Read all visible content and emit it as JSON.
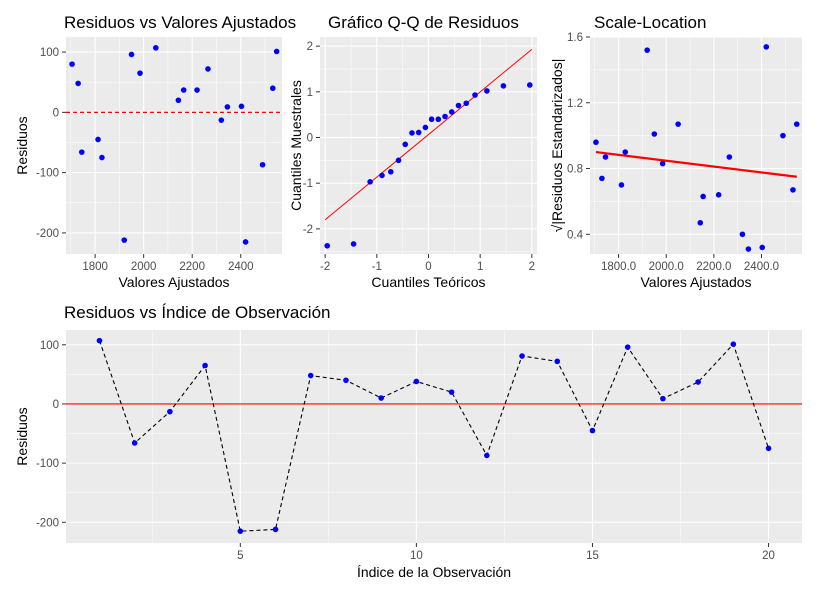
{
  "chart_data": [
    {
      "id": "resid-fitted",
      "type": "scatter",
      "title": "Residuos vs Valores Ajustados",
      "xlabel": "Valores Ajustados",
      "ylabel": "Residuos",
      "xlim": [
        1680,
        2570
      ],
      "ylim": [
        -235,
        125
      ],
      "xticks": [
        1800,
        2000,
        2200,
        2400
      ],
      "yticks": [
        -200,
        -100,
        0,
        100
      ],
      "grid": true,
      "point_color": "#0000ff",
      "reference_line": {
        "y": 0,
        "style": "dashed",
        "color": "#ff0000"
      },
      "points": [
        {
          "x": 1705,
          "y": 80
        },
        {
          "x": 1730,
          "y": 48
        },
        {
          "x": 1745,
          "y": -66
        },
        {
          "x": 1812,
          "y": -45
        },
        {
          "x": 1828,
          "y": -75
        },
        {
          "x": 1920,
          "y": -212
        },
        {
          "x": 1950,
          "y": 96
        },
        {
          "x": 1985,
          "y": 65
        },
        {
          "x": 2050,
          "y": 107
        },
        {
          "x": 2143,
          "y": 20
        },
        {
          "x": 2165,
          "y": 37
        },
        {
          "x": 2220,
          "y": 37
        },
        {
          "x": 2265,
          "y": 72
        },
        {
          "x": 2320,
          "y": -13
        },
        {
          "x": 2345,
          "y": 9
        },
        {
          "x": 2403,
          "y": 10
        },
        {
          "x": 2420,
          "y": -215
        },
        {
          "x": 2490,
          "y": -87
        },
        {
          "x": 2532,
          "y": 40
        },
        {
          "x": 2548,
          "y": 101
        }
      ]
    },
    {
      "id": "qq",
      "type": "scatter",
      "title": "Gráfico Q-Q de Residuos",
      "xlabel": "Cuantiles Teóricos",
      "ylabel": "Cuantiles Muestrales",
      "xlim": [
        -2.1,
        2.1
      ],
      "ylim": [
        -2.55,
        2.2
      ],
      "xticks": [
        -2,
        -1,
        0,
        1,
        2
      ],
      "yticks": [
        -2,
        -1,
        0,
        1,
        2
      ],
      "grid": true,
      "point_color": "#0000ff",
      "reference_line": {
        "from": [
          -2,
          -1.8
        ],
        "to": [
          2,
          1.93
        ],
        "color": "#ff0000"
      },
      "points": [
        {
          "x": -1.96,
          "y": -2.37
        },
        {
          "x": -1.45,
          "y": -2.33
        },
        {
          "x": -1.13,
          "y": -0.97
        },
        {
          "x": -0.9,
          "y": -0.83
        },
        {
          "x": -0.73,
          "y": -0.75
        },
        {
          "x": -0.58,
          "y": -0.5
        },
        {
          "x": -0.45,
          "y": -0.15
        },
        {
          "x": -0.32,
          "y": 0.1
        },
        {
          "x": -0.19,
          "y": 0.11
        },
        {
          "x": -0.06,
          "y": 0.22
        },
        {
          "x": 0.06,
          "y": 0.4
        },
        {
          "x": 0.19,
          "y": 0.4
        },
        {
          "x": 0.32,
          "y": 0.46
        },
        {
          "x": 0.45,
          "y": 0.56
        },
        {
          "x": 0.58,
          "y": 0.7
        },
        {
          "x": 0.73,
          "y": 0.75
        },
        {
          "x": 0.9,
          "y": 0.93
        },
        {
          "x": 1.13,
          "y": 1.02
        },
        {
          "x": 1.45,
          "y": 1.13
        },
        {
          "x": 1.96,
          "y": 1.15
        }
      ]
    },
    {
      "id": "scale-location",
      "type": "scatter",
      "title": "Scale-Location",
      "xlabel": "Valores Ajustados",
      "ylabel": "√|Residuos Estandarizados|",
      "xlim": [
        1680,
        2570
      ],
      "ylim": [
        0.28,
        1.6
      ],
      "xticks": [
        1800,
        2000,
        2200,
        2400
      ],
      "yticks": [
        0.4,
        0.8,
        1.2,
        1.6
      ],
      "grid": true,
      "point_color": "#0000ff",
      "trend_line": {
        "from": [
          1705,
          0.9
        ],
        "to": [
          2548,
          0.75
        ],
        "color": "#ff0000"
      },
      "points": [
        {
          "x": 1705,
          "y": 0.96
        },
        {
          "x": 1730,
          "y": 0.74
        },
        {
          "x": 1745,
          "y": 0.87
        },
        {
          "x": 1812,
          "y": 0.7
        },
        {
          "x": 1828,
          "y": 0.9
        },
        {
          "x": 1920,
          "y": 1.52
        },
        {
          "x": 1950,
          "y": 1.01
        },
        {
          "x": 1985,
          "y": 0.83
        },
        {
          "x": 2050,
          "y": 1.07
        },
        {
          "x": 2143,
          "y": 0.47
        },
        {
          "x": 2155,
          "y": 0.63
        },
        {
          "x": 2220,
          "y": 0.64
        },
        {
          "x": 2265,
          "y": 0.87
        },
        {
          "x": 2320,
          "y": 0.4
        },
        {
          "x": 2345,
          "y": 0.31
        },
        {
          "x": 2403,
          "y": 0.32
        },
        {
          "x": 2420,
          "y": 1.54
        },
        {
          "x": 2490,
          "y": 1.0
        },
        {
          "x": 2532,
          "y": 0.67
        },
        {
          "x": 2548,
          "y": 1.07
        }
      ]
    },
    {
      "id": "resid-index",
      "type": "line",
      "title": "Residuos vs Índice de Observación",
      "xlabel": "Índice de la Observación",
      "ylabel": "Residuos",
      "xlim": [
        0.05,
        20.95
      ],
      "ylim": [
        -235,
        125
      ],
      "xticks": [
        5,
        10,
        15,
        20
      ],
      "yticks": [
        -200,
        -100,
        0,
        100
      ],
      "grid": true,
      "point_color": "#0000ff",
      "line_style": "dashed",
      "line_color": "#000000",
      "reference_line": {
        "y": 0,
        "style": "solid",
        "color": "#ff0000"
      },
      "x": [
        1,
        2,
        3,
        4,
        5,
        6,
        7,
        8,
        9,
        10,
        11,
        12,
        13,
        14,
        15,
        16,
        17,
        18,
        19,
        20
      ],
      "values": [
        107,
        -66,
        -13,
        65,
        -215,
        -212,
        48,
        40,
        10,
        38,
        20,
        -87,
        81,
        72,
        -45,
        96,
        9,
        37,
        101,
        -75
      ]
    }
  ]
}
